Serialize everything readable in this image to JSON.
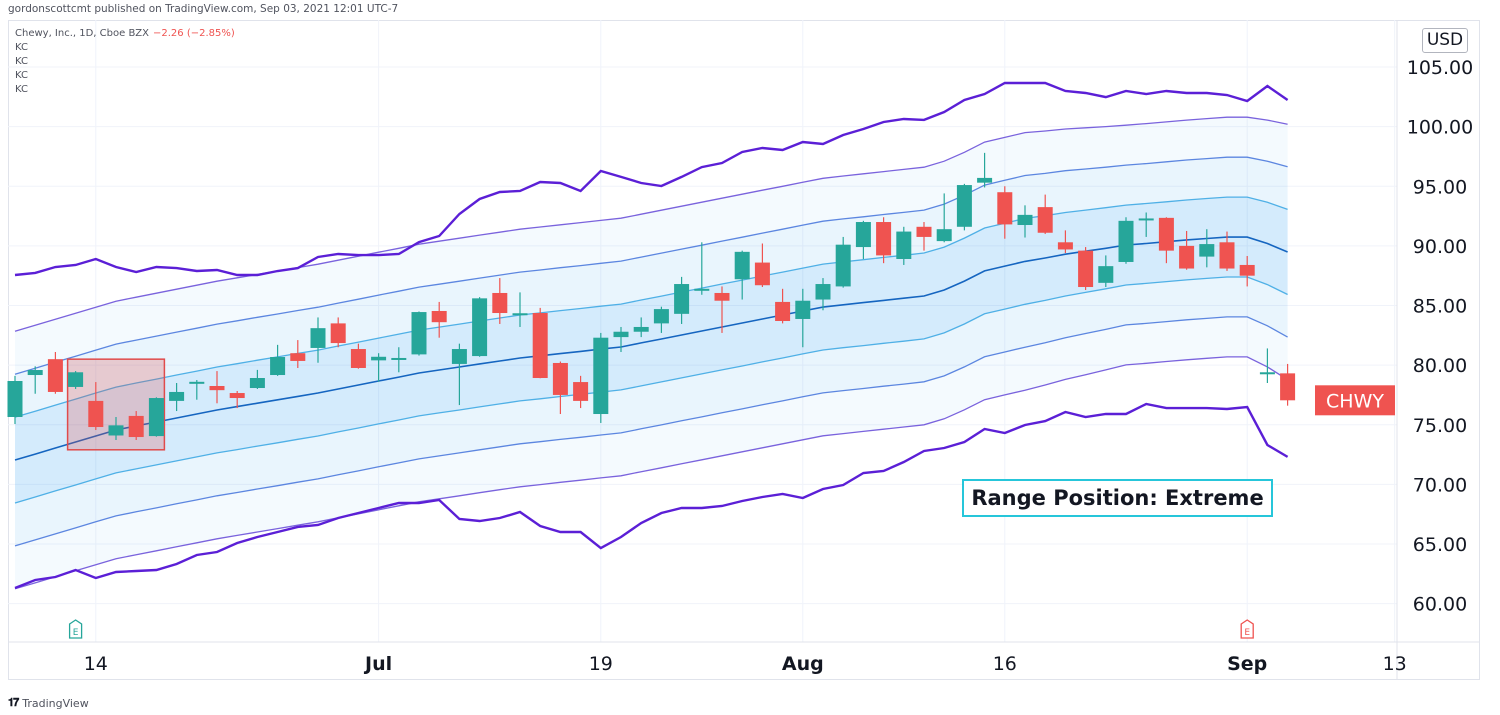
{
  "header": {
    "published": "gordonscottcmt published on TradingView.com, Sep 03, 2021 12:01 UTC-7"
  },
  "legend": {
    "symbol": "Chewy, Inc., 1D, Cboe BZX",
    "change": "−2.26 (−2.85%)",
    "indicators": [
      "KC",
      "KC",
      "KC",
      "KC"
    ]
  },
  "price_axis": {
    "currency": "USD",
    "ticks": [
      "60.00",
      "65.00",
      "70.00",
      "75.00",
      "80.00",
      "85.00",
      "90.00",
      "95.00",
      "100.00",
      "105.00"
    ]
  },
  "symbol_label": {
    "text": "CHWY",
    "price": 77.05
  },
  "annotation": {
    "text": "Range Position: Extreme"
  },
  "footer": {
    "brand": "TradingView",
    "logo": "TV"
  },
  "earnings_markers": [
    {
      "label": "E",
      "bar": 3,
      "color": "#26a69a"
    },
    {
      "label": "E",
      "bar": 61,
      "color": "#ef5350"
    }
  ],
  "colors": {
    "up": "#26a69a",
    "down": "#ef5350",
    "kc_outer": "#5b1fd6",
    "kc3": "#7a63dd",
    "kc2": "#5c86e0",
    "kc1": "#4fb0e6",
    "basis": "#1565c0",
    "highlight": "#e04b4b",
    "annotation_border": "#26c6da"
  },
  "chart_data": {
    "type": "candlestick",
    "ylim": [
      56.7,
      108.9
    ],
    "grid": true,
    "x_ticks": [
      {
        "label": "14",
        "bar": 4,
        "bold": false
      },
      {
        "label": "Jul",
        "bar": 18,
        "bold": true
      },
      {
        "label": "19",
        "bar": 29,
        "bold": false
      },
      {
        "label": "Aug",
        "bar": 39,
        "bold": true
      },
      {
        "label": "16",
        "bar": 49,
        "bold": false
      },
      {
        "label": "Sep",
        "bar": 61,
        "bold": true
      },
      {
        "label": "13",
        "bar": 68.3,
        "bold": false
      }
    ],
    "candles_ohlc": [
      [
        75.65,
        79.1,
        75.06,
        78.67
      ],
      [
        79.17,
        79.9,
        77.6,
        79.59
      ],
      [
        80.5,
        81.1,
        77.6,
        77.75
      ],
      [
        78.17,
        79.5,
        78.0,
        79.4
      ],
      [
        77.0,
        78.58,
        74.56,
        74.81
      ],
      [
        74.1,
        75.65,
        73.72,
        74.95
      ],
      [
        75.74,
        76.15,
        73.72,
        73.97
      ],
      [
        74.05,
        77.3,
        74.0,
        77.24
      ],
      [
        77.0,
        78.5,
        76.15,
        77.75
      ],
      [
        78.55,
        78.75,
        77.1,
        78.6
      ],
      [
        78.25,
        79.5,
        76.8,
        77.9
      ],
      [
        77.66,
        77.83,
        76.4,
        77.24
      ],
      [
        78.08,
        79.6,
        78.0,
        78.92
      ],
      [
        79.17,
        81.7,
        79.1,
        80.68
      ],
      [
        81.0,
        82.1,
        79.76,
        80.35
      ],
      [
        81.44,
        84.0,
        80.2,
        83.1
      ],
      [
        83.5,
        84.0,
        81.5,
        81.85
      ],
      [
        81.35,
        81.8,
        79.7,
        79.76
      ],
      [
        80.4,
        81.0,
        78.6,
        80.7
      ],
      [
        80.55,
        81.5,
        79.4,
        80.6
      ],
      [
        80.9,
        84.5,
        80.8,
        84.45
      ],
      [
        84.54,
        85.3,
        82.3,
        83.6
      ],
      [
        80.1,
        81.8,
        76.65,
        81.35
      ],
      [
        80.76,
        85.7,
        80.7,
        85.6
      ],
      [
        86.05,
        87.3,
        83.45,
        84.37
      ],
      [
        84.2,
        86.1,
        83.2,
        84.35
      ],
      [
        84.37,
        84.8,
        78.9,
        78.92
      ],
      [
        80.18,
        80.3,
        75.9,
        77.5
      ],
      [
        78.58,
        79.1,
        76.4,
        77.0
      ],
      [
        75.9,
        82.7,
        75.15,
        82.3
      ],
      [
        82.35,
        83.2,
        81.1,
        82.8
      ],
      [
        82.8,
        84.0,
        82.35,
        83.2
      ],
      [
        83.5,
        84.9,
        82.7,
        84.7
      ],
      [
        84.3,
        87.4,
        83.45,
        86.8
      ],
      [
        86.3,
        90.3,
        85.9,
        86.4
      ],
      [
        86.05,
        86.6,
        82.7,
        85.4
      ],
      [
        87.2,
        89.6,
        85.5,
        89.5
      ],
      [
        88.6,
        90.2,
        86.55,
        86.7
      ],
      [
        85.3,
        86.4,
        83.5,
        83.7
      ],
      [
        83.87,
        86.4,
        81.5,
        85.4
      ],
      [
        85.5,
        87.3,
        84.6,
        86.8
      ],
      [
        86.6,
        90.75,
        86.5,
        90.1
      ],
      [
        89.9,
        92.1,
        88.9,
        92.0
      ],
      [
        92.0,
        92.4,
        88.55,
        89.2
      ],
      [
        88.9,
        91.6,
        88.4,
        91.2
      ],
      [
        91.6,
        92.0,
        89.6,
        90.75
      ],
      [
        90.4,
        94.4,
        90.3,
        91.4
      ],
      [
        91.6,
        95.2,
        91.3,
        95.1
      ],
      [
        95.3,
        97.8,
        94.9,
        95.7
      ],
      [
        94.5,
        95.0,
        90.6,
        91.8
      ],
      [
        91.75,
        93.4,
        90.7,
        92.6
      ],
      [
        93.25,
        94.3,
        91.0,
        91.1
      ],
      [
        90.3,
        91.3,
        89.4,
        89.7
      ],
      [
        89.6,
        89.9,
        86.3,
        86.55
      ],
      [
        86.9,
        89.2,
        86.55,
        88.3
      ],
      [
        88.65,
        92.4,
        88.5,
        92.1
      ],
      [
        92.2,
        92.8,
        90.75,
        92.3
      ],
      [
        92.35,
        92.4,
        88.55,
        89.6
      ],
      [
        90.0,
        91.25,
        88.0,
        88.1
      ],
      [
        89.1,
        91.4,
        88.2,
        90.15
      ],
      [
        90.3,
        91.2,
        87.9,
        88.1
      ],
      [
        88.4,
        89.15,
        86.6,
        87.5
      ],
      [
        79.3,
        81.4,
        78.5,
        79.4
      ],
      [
        79.31,
        80.1,
        76.6,
        77.05
      ]
    ],
    "keltner": {
      "multipliers": [
        1,
        2,
        3
      ],
      "basis": [
        72.04,
        72.54,
        73.05,
        73.55,
        74.06,
        74.56,
        74.9,
        75.23,
        75.57,
        75.9,
        76.24,
        76.52,
        76.81,
        77.09,
        77.38,
        77.66,
        78.0,
        78.33,
        78.67,
        79.0,
        79.34,
        79.59,
        79.84,
        80.1,
        80.35,
        80.6,
        80.78,
        80.97,
        81.15,
        81.34,
        81.52,
        81.86,
        82.19,
        82.53,
        82.86,
        83.2,
        83.53,
        83.87,
        84.2,
        84.54,
        84.87,
        85.06,
        85.24,
        85.43,
        85.61,
        85.8,
        86.3,
        87.05,
        87.9,
        88.3,
        88.7,
        88.98,
        89.3,
        89.55,
        89.8,
        90.07,
        90.2,
        90.35,
        90.5,
        90.62,
        90.74,
        90.74,
        90.2,
        89.49
      ],
      "atr": [
        3.6,
        3.6,
        3.6,
        3.6,
        3.6,
        3.6,
        3.6,
        3.6,
        3.6,
        3.6,
        3.6,
        3.6,
        3.6,
        3.6,
        3.6,
        3.6,
        3.6,
        3.6,
        3.6,
        3.6,
        3.6,
        3.6,
        3.6,
        3.6,
        3.6,
        3.6,
        3.6,
        3.6,
        3.6,
        3.6,
        3.6,
        3.6,
        3.6,
        3.6,
        3.6,
        3.6,
        3.6,
        3.6,
        3.6,
        3.6,
        3.6,
        3.6,
        3.6,
        3.6,
        3.6,
        3.6,
        3.6,
        3.6,
        3.6,
        3.6,
        3.6,
        3.55,
        3.5,
        3.45,
        3.4,
        3.35,
        3.35,
        3.35,
        3.35,
        3.35,
        3.35,
        3.35,
        3.45,
        3.57
      ],
      "outer_upper": [
        87.56,
        87.73,
        88.23,
        88.4,
        88.9,
        88.23,
        87.81,
        88.23,
        88.14,
        87.89,
        87.98,
        87.56,
        87.56,
        87.89,
        88.14,
        89.07,
        89.32,
        89.23,
        89.23,
        89.32,
        90.32,
        90.83,
        92.67,
        93.93,
        94.52,
        94.6,
        95.36,
        95.27,
        94.6,
        96.28,
        95.78,
        95.27,
        95.02,
        95.78,
        96.61,
        96.95,
        97.87,
        98.21,
        98.04,
        98.71,
        98.54,
        99.3,
        99.8,
        100.39,
        100.64,
        100.56,
        101.23,
        102.23,
        102.74,
        103.66,
        103.66,
        103.66,
        102.99,
        102.82,
        102.48,
        102.99,
        102.74,
        102.99,
        102.82,
        102.82,
        102.65,
        102.15,
        103.41,
        102.23
      ],
      "outer_lower": [
        61.31,
        61.98,
        62.23,
        62.82,
        62.15,
        62.65,
        62.74,
        62.82,
        63.32,
        64.08,
        64.33,
        65.08,
        65.59,
        66.01,
        66.43,
        66.59,
        67.18,
        67.6,
        68.02,
        68.44,
        68.44,
        68.69,
        67.1,
        66.93,
        67.18,
        67.68,
        66.51,
        66.01,
        66.01,
        64.66,
        65.59,
        66.76,
        67.6,
        68.02,
        68.02,
        68.19,
        68.61,
        68.94,
        69.19,
        68.86,
        69.61,
        69.95,
        70.95,
        71.12,
        71.88,
        72.8,
        73.05,
        73.55,
        74.64,
        74.31,
        74.98,
        75.31,
        76.07,
        75.65,
        75.9,
        75.9,
        76.74,
        76.4,
        76.4,
        76.4,
        76.32,
        76.49,
        73.3,
        72.3
      ]
    },
    "highlight_zone": {
      "from_bar": 3,
      "to_bar": 7,
      "top": 80.5,
      "bottom": 72.9
    }
  }
}
